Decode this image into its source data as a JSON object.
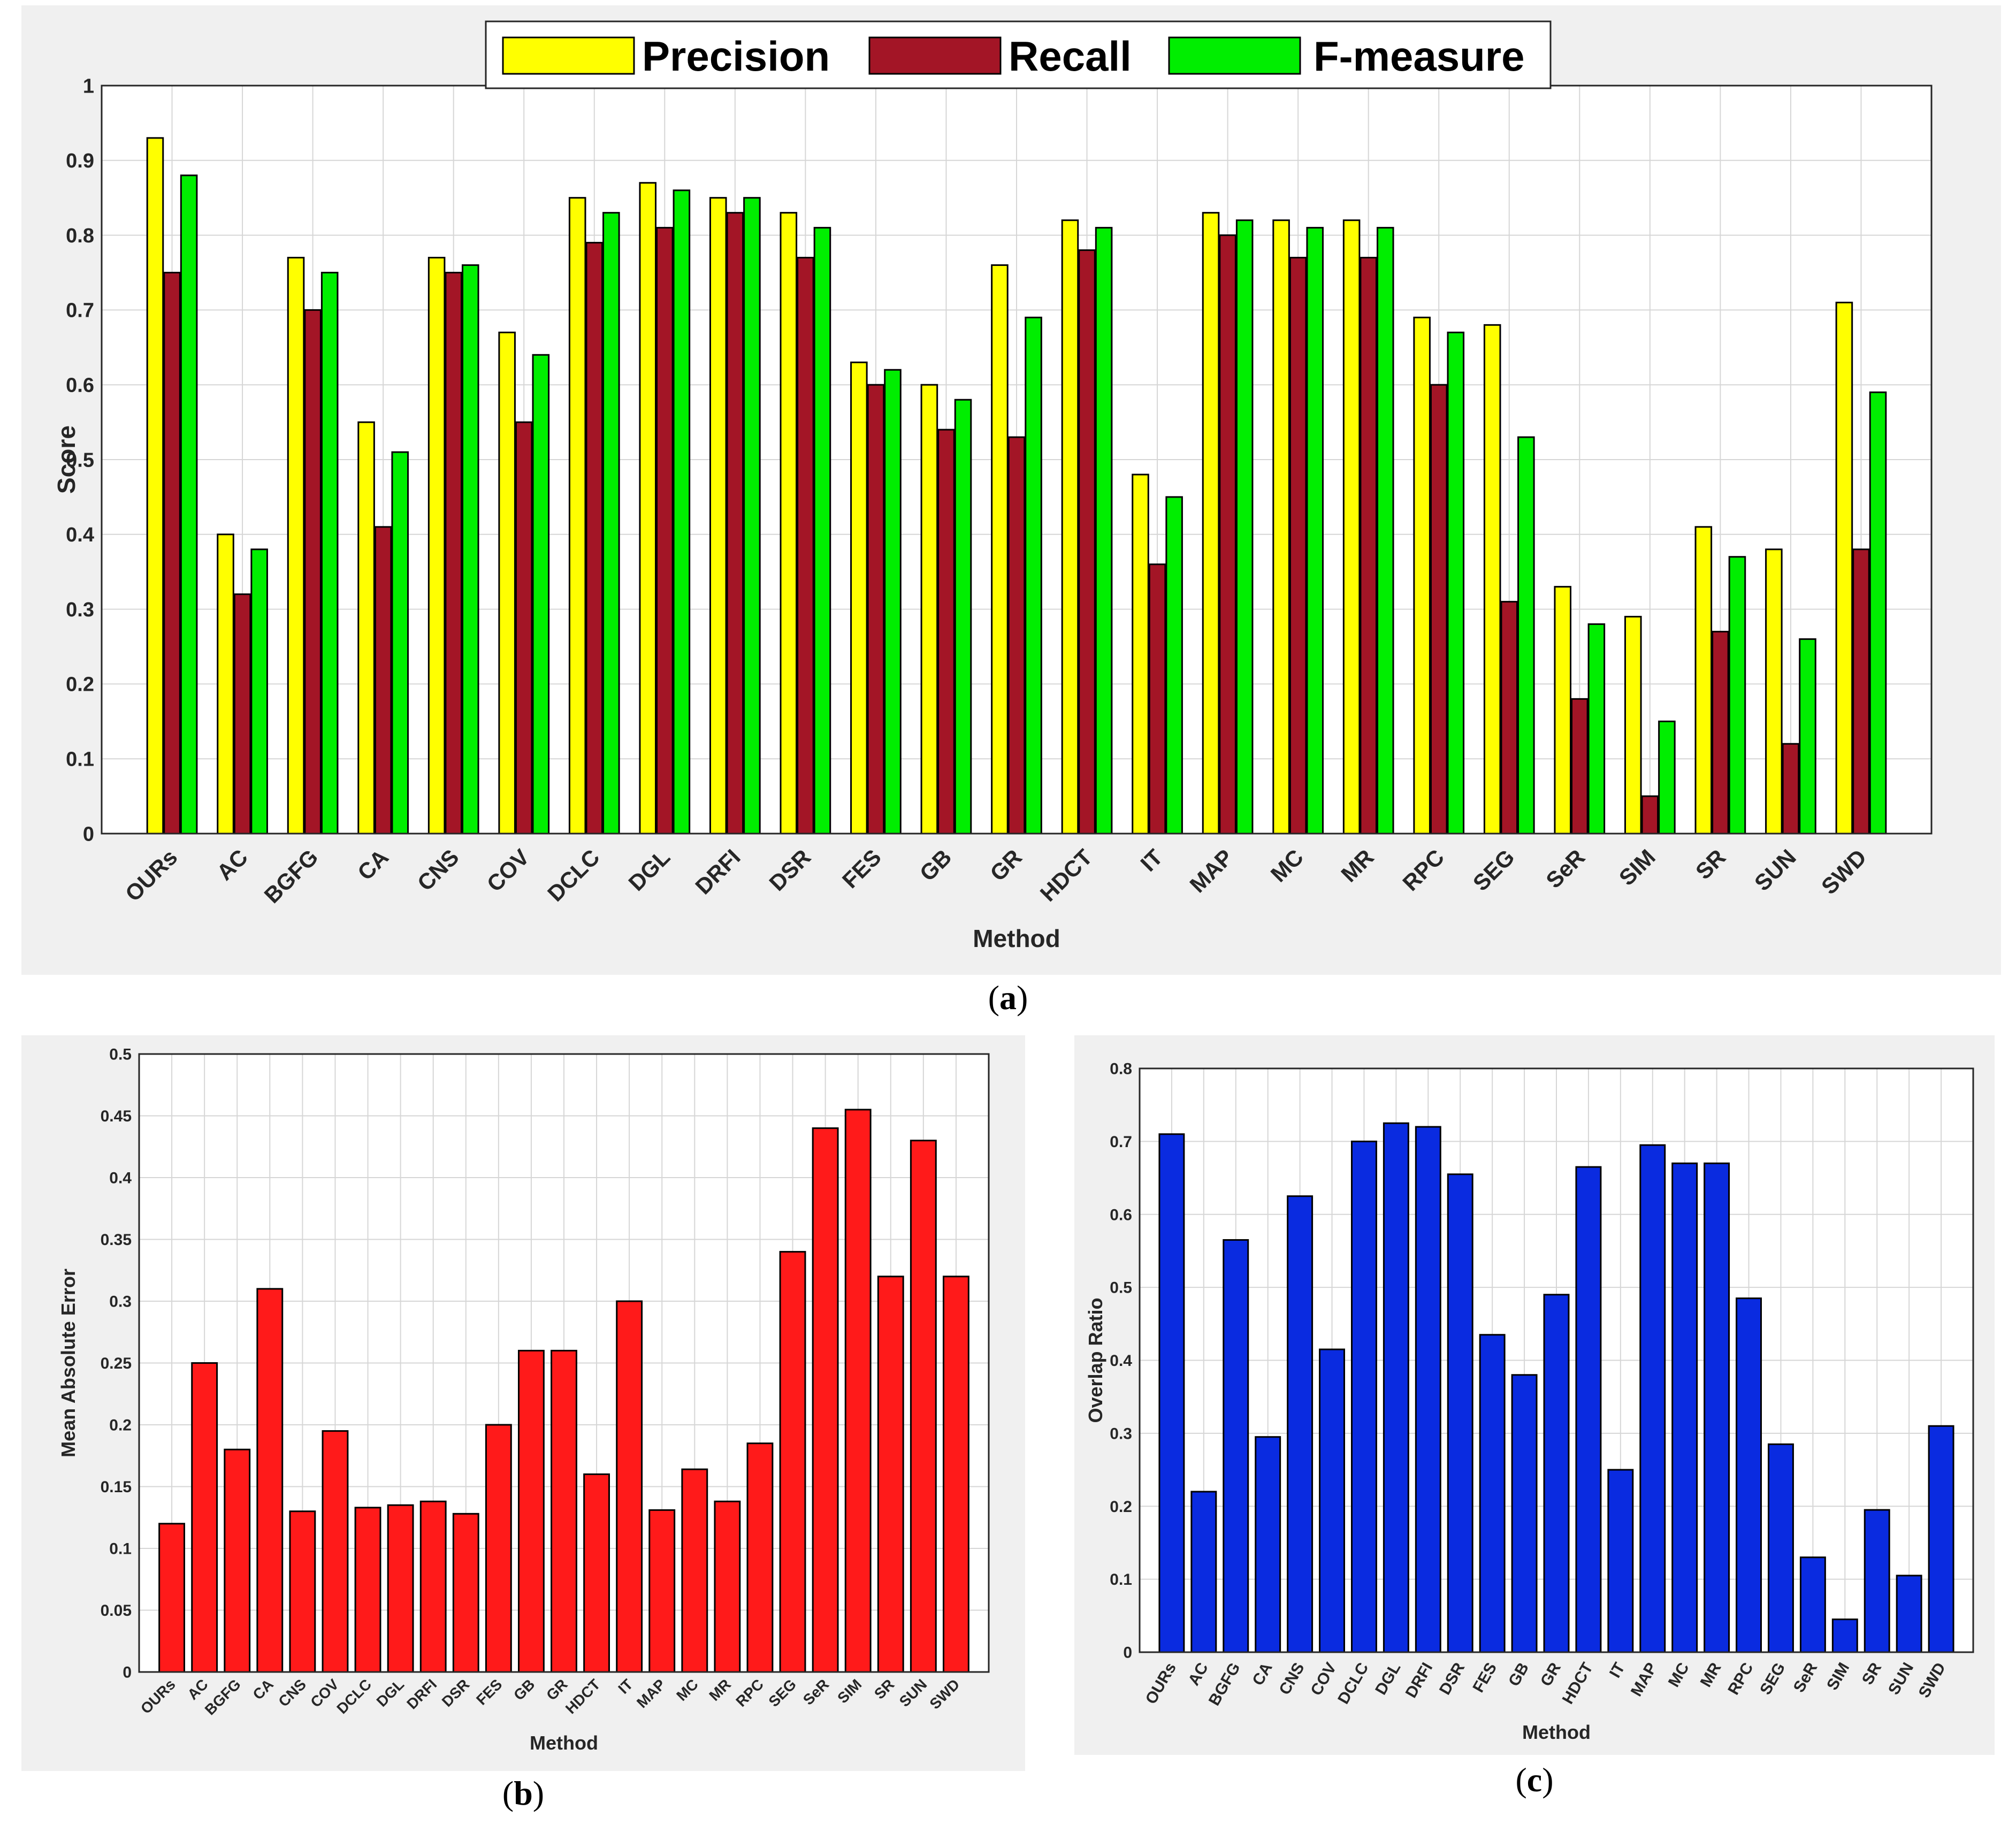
{
  "categories": [
    "OURs",
    "AC",
    "BGFG",
    "CA",
    "CNS",
    "COV",
    "DCLC",
    "DGL",
    "DRFI",
    "DSR",
    "FES",
    "GB",
    "GR",
    "HDCT",
    "IT",
    "MAP",
    "MC",
    "MR",
    "RPC",
    "SEG",
    "SeR",
    "SIM",
    "SR",
    "SUN",
    "SWD"
  ],
  "colors": {
    "precision": "#ffff00",
    "recall": "#a31526",
    "fmeasure": "#00ee00",
    "mae": "#ff1a1a",
    "overlap": "#0a2be0",
    "panel": "#f0f0f0"
  },
  "chart_data": [
    {
      "id": "a",
      "type": "bar",
      "panel_label": "a",
      "xlabel": "Method",
      "ylabel": "Score",
      "ylim": [
        0,
        1
      ],
      "yticks": [
        "0",
        "0.1",
        "0.2",
        "0.3",
        "0.4",
        "0.5",
        "0.6",
        "0.7",
        "0.8",
        "0.9",
        "1"
      ],
      "legend": {
        "position": "top-center",
        "entries": [
          "Precision",
          "Recall",
          "F-measure"
        ]
      },
      "series": [
        {
          "name": "Precision",
          "values": [
            0.93,
            0.4,
            0.77,
            0.55,
            0.77,
            0.67,
            0.85,
            0.87,
            0.85,
            0.83,
            0.63,
            0.6,
            0.76,
            0.82,
            0.48,
            0.83,
            0.82,
            0.82,
            0.69,
            0.68,
            0.33,
            0.29,
            0.41,
            0.38,
            0.71
          ]
        },
        {
          "name": "Recall",
          "values": [
            0.75,
            0.32,
            0.7,
            0.41,
            0.75,
            0.55,
            0.79,
            0.81,
            0.83,
            0.77,
            0.6,
            0.54,
            0.53,
            0.78,
            0.36,
            0.8,
            0.77,
            0.77,
            0.6,
            0.31,
            0.18,
            0.05,
            0.27,
            0.12,
            0.38
          ]
        },
        {
          "name": "F-measure",
          "values": [
            0.88,
            0.38,
            0.75,
            0.51,
            0.76,
            0.64,
            0.83,
            0.86,
            0.85,
            0.81,
            0.62,
            0.58,
            0.69,
            0.81,
            0.45,
            0.82,
            0.81,
            0.81,
            0.67,
            0.53,
            0.28,
            0.15,
            0.37,
            0.26,
            0.59
          ]
        }
      ]
    },
    {
      "id": "b",
      "type": "bar",
      "panel_label": "b",
      "xlabel": "Method",
      "ylabel": "Mean Absolute Error",
      "ylim": [
        0,
        0.5
      ],
      "yticks": [
        "0",
        "0.05",
        "0.1",
        "0.15",
        "0.2",
        "0.25",
        "0.3",
        "0.35",
        "0.4",
        "0.45",
        "0.5"
      ],
      "series": [
        {
          "name": "MAE",
          "values": [
            0.12,
            0.25,
            0.18,
            0.31,
            0.13,
            0.195,
            0.133,
            0.135,
            0.138,
            0.128,
            0.2,
            0.26,
            0.26,
            0.16,
            0.3,
            0.131,
            0.164,
            0.138,
            0.185,
            0.34,
            0.44,
            0.455,
            0.32,
            0.43,
            0.32
          ]
        }
      ]
    },
    {
      "id": "c",
      "type": "bar",
      "panel_label": "c",
      "xlabel": "Method",
      "ylabel": "Overlap Ratio",
      "ylim": [
        0,
        0.8
      ],
      "yticks": [
        "0",
        "0.1",
        "0.2",
        "0.3",
        "0.4",
        "0.5",
        "0.6",
        "0.7",
        "0.8"
      ],
      "series": [
        {
          "name": "Overlap",
          "values": [
            0.71,
            0.22,
            0.565,
            0.295,
            0.625,
            0.415,
            0.7,
            0.725,
            0.72,
            0.655,
            0.435,
            0.38,
            0.49,
            0.665,
            0.25,
            0.695,
            0.67,
            0.67,
            0.485,
            0.285,
            0.13,
            0.045,
            0.195,
            0.105,
            0.31
          ]
        }
      ]
    }
  ]
}
